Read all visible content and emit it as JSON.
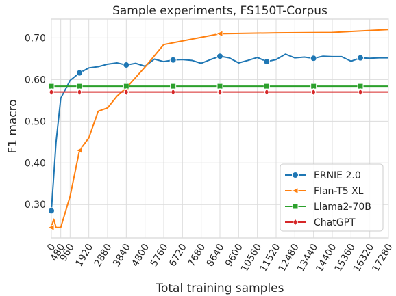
{
  "chart_data": {
    "type": "line",
    "title": "Sample experiments, FS150T-Corpus",
    "xlabel": "Total training samples",
    "ylabel": "F1 macro",
    "xlim": [
      0,
      17280
    ],
    "ylim": [
      0.22,
      0.745
    ],
    "xticks": [
      0,
      480,
      960,
      1920,
      2880,
      3840,
      4800,
      5760,
      6720,
      7680,
      8640,
      9600,
      10560,
      11520,
      12480,
      13440,
      14400,
      15360,
      16320,
      17280
    ],
    "yticks": [
      0.3,
      0.4,
      0.5,
      0.6,
      0.7
    ],
    "ytick_labels": [
      "0.30",
      "0.40",
      "0.50",
      "0.60",
      "0.70"
    ],
    "grid": true,
    "legend_position": "lower right",
    "series": [
      {
        "name": "ERNIE 2.0",
        "color": "#1f77b4",
        "marker": "circle",
        "x": [
          0,
          240,
          480,
          960,
          1440,
          1920,
          2400,
          2880,
          3360,
          3840,
          4320,
          4800,
          5280,
          5760,
          6240,
          6720,
          7200,
          7680,
          8160,
          8640,
          9120,
          9600,
          10080,
          10560,
          11040,
          11520,
          12000,
          12480,
          12960,
          13440,
          13920,
          14400,
          14880,
          15360,
          15840,
          16320,
          16800,
          17280
        ],
        "y": [
          0.285,
          0.45,
          0.555,
          0.598,
          0.616,
          0.628,
          0.631,
          0.637,
          0.64,
          0.635,
          0.639,
          0.632,
          0.649,
          0.643,
          0.647,
          0.648,
          0.646,
          0.639,
          0.648,
          0.656,
          0.652,
          0.64,
          0.646,
          0.653,
          0.643,
          0.648,
          0.661,
          0.652,
          0.654,
          0.651,
          0.656,
          0.655,
          0.655,
          0.644,
          0.652,
          0.651,
          0.652,
          0.652
        ],
        "marker_x": [
          0,
          1440,
          3840,
          6240,
          8640,
          11040,
          13440,
          15840
        ]
      },
      {
        "name": "Flan-T5 XL",
        "color": "#ff7f0e",
        "marker": "triangle-left",
        "x": [
          0,
          120,
          240,
          480,
          960,
          1440,
          1920,
          2400,
          2880,
          3360,
          3840,
          4800,
          5760,
          8640,
          11520,
          14400,
          17280
        ],
        "y": [
          0.245,
          0.265,
          0.245,
          0.245,
          0.32,
          0.43,
          0.46,
          0.524,
          0.532,
          0.56,
          0.58,
          0.63,
          0.684,
          0.71,
          0.712,
          0.713,
          0.72
        ],
        "marker_x": [
          0,
          1440,
          3840,
          8640
        ]
      },
      {
        "name": "Llama2-70B",
        "color": "#2ca02c",
        "marker": "square",
        "x": [
          0,
          17280
        ],
        "y": [
          0.584,
          0.584
        ],
        "marker_x": [
          0,
          1440,
          3840,
          6240,
          8640,
          11040,
          13440,
          15840
        ]
      },
      {
        "name": "ChatGPT",
        "color": "#d62728",
        "marker": "diamond",
        "x": [
          0,
          17280
        ],
        "y": [
          0.57,
          0.57
        ],
        "marker_x": [
          0,
          1440,
          3840,
          6240,
          8640,
          11040,
          13440,
          15840
        ]
      }
    ]
  }
}
